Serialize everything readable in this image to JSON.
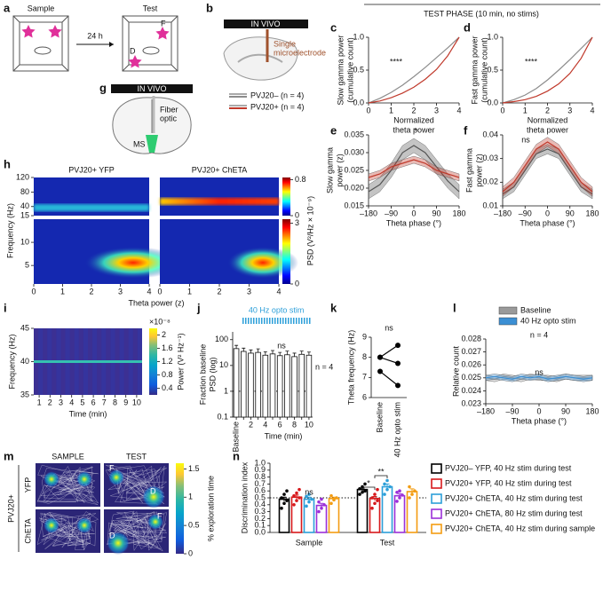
{
  "header": "TEST PHASE (10 min, no stims)",
  "panel_labels": [
    "a",
    "b",
    "c",
    "d",
    "e",
    "f",
    "g",
    "h",
    "i",
    "j",
    "k",
    "l",
    "m",
    "n"
  ],
  "diagrams": {
    "a": {
      "sample": "Sample",
      "test": "Test",
      "delay": "24 h",
      "objects": [
        "F",
        "D"
      ]
    },
    "b": {
      "banner": "IN VIVO",
      "electrode": [
        "Single",
        "microelectrode"
      ],
      "legend": [
        {
          "name": "PVJ20– (n = 4)",
          "color": "#8c8c8c"
        },
        {
          "name": "PVJ20+ (n = 4)",
          "color": "#c0392b"
        }
      ]
    },
    "g": {
      "banner": "IN VIVO",
      "fiber": [
        "Fiber",
        "optic"
      ],
      "region": "MS"
    }
  },
  "chart_data": [
    {
      "type": "line",
      "ylabel": [
        "Slow gamma power",
        "(cumulative count)"
      ],
      "xlabel": [
        "Normalized",
        "theta power"
      ],
      "annotation": "****",
      "x": [
        0,
        0.5,
        1,
        1.5,
        2,
        2.5,
        3,
        3.5,
        4
      ],
      "series": [
        {
          "color": "#8c8c8c",
          "values": [
            0,
            0.07,
            0.16,
            0.27,
            0.4,
            0.54,
            0.69,
            0.84,
            1
          ]
        },
        {
          "color": "#c0392b",
          "values": [
            0,
            0.03,
            0.08,
            0.15,
            0.24,
            0.36,
            0.51,
            0.72,
            1
          ]
        }
      ],
      "xlim": [
        0,
        4
      ],
      "xticks": [
        0,
        1,
        2,
        3,
        4
      ],
      "ylim": [
        0,
        1
      ],
      "yticks": [
        {
          "value": 0,
          "label": "0.0"
        },
        0.5,
        {
          "value": 1,
          "label": "1.0"
        }
      ]
    },
    {
      "type": "line",
      "ylabel": [
        "Fast gamma power",
        "(cumulative count)"
      ],
      "xlabel": [
        "Normalized",
        "theta power"
      ],
      "annotation": "****",
      "x": [
        0,
        0.5,
        1,
        1.5,
        2,
        2.5,
        3,
        3.5,
        4
      ],
      "series": [
        {
          "color": "#8c8c8c",
          "values": [
            0,
            0.05,
            0.12,
            0.22,
            0.35,
            0.5,
            0.66,
            0.83,
            1
          ]
        },
        {
          "color": "#c0392b",
          "values": [
            0,
            0.02,
            0.05,
            0.1,
            0.18,
            0.29,
            0.45,
            0.68,
            1
          ]
        }
      ],
      "xlim": [
        0,
        4
      ],
      "xticks": [
        0,
        1,
        2,
        3,
        4
      ],
      "ylim": [
        0,
        1
      ],
      "yticks": [
        {
          "value": 0,
          "label": "0.0"
        },
        0.5,
        {
          "value": 1,
          "label": "1.0"
        }
      ]
    },
    {
      "type": "line",
      "ylabel": [
        "Slow gamma",
        "power (z)"
      ],
      "xlabel": "Theta phase (°)",
      "annotation": "*",
      "x": [
        -180,
        -135,
        -90,
        -45,
        0,
        45,
        90,
        135,
        180
      ],
      "series": [
        {
          "color": "#555555",
          "values": [
            0.019,
            0.021,
            0.025,
            0.03,
            0.032,
            0.03,
            0.026,
            0.022,
            0.019
          ],
          "errors": [
            0.002,
            0.002,
            0.002,
            0.002,
            0.002,
            0.002,
            0.002,
            0.002,
            0.002
          ]
        },
        {
          "color": "#c0392b",
          "values": [
            0.023,
            0.024,
            0.026,
            0.027,
            0.028,
            0.027,
            0.025,
            0.024,
            0.023
          ],
          "errors": [
            0.001,
            0.001,
            0.001,
            0.001,
            0.001,
            0.001,
            0.001,
            0.001,
            0.001
          ]
        }
      ],
      "xlim": [
        -180,
        180
      ],
      "xticks": [
        {
          "value": -180,
          "label": "–180"
        },
        {
          "value": -90,
          "label": "–90"
        },
        0,
        90,
        180
      ],
      "ylim": [
        0.015,
        0.035
      ],
      "yticks": [
        0.015,
        {
          "value": 0.02,
          "label": "0.020"
        },
        0.025,
        {
          "value": 0.03,
          "label": "0.030"
        },
        0.035
      ]
    },
    {
      "type": "line",
      "ylabel": [
        "Fast gamma",
        "power (z)"
      ],
      "xlabel": "Theta phase (°)",
      "annotation": "ns",
      "x": [
        -180,
        -135,
        -90,
        -45,
        0,
        45,
        90,
        135,
        180
      ],
      "series": [
        {
          "color": "#555555",
          "values": [
            0.015,
            0.018,
            0.025,
            0.032,
            0.034,
            0.032,
            0.025,
            0.018,
            0.015
          ],
          "errors": [
            0.002,
            0.002,
            0.002,
            0.002,
            0.002,
            0.002,
            0.002,
            0.002,
            0.002
          ]
        },
        {
          "color": "#c0392b",
          "values": [
            0.016,
            0.02,
            0.027,
            0.034,
            0.037,
            0.034,
            0.027,
            0.02,
            0.016
          ],
          "errors": [
            0.002,
            0.002,
            0.002,
            0.002,
            0.002,
            0.002,
            0.002,
            0.002,
            0.002
          ]
        }
      ],
      "xlim": [
        -180,
        180
      ],
      "xticks": [
        {
          "value": -180,
          "label": "–180"
        },
        {
          "value": -90,
          "label": "–90"
        },
        0,
        90,
        180
      ],
      "ylim": [
        0.01,
        0.04
      ],
      "yticks": [
        0.01,
        0.02,
        0.03,
        0.04
      ]
    },
    {
      "type": "heatmap",
      "titles": [
        "PVJ20+ YFP",
        "PVJ20+ ChETA"
      ],
      "ylabel": "Frequency (Hz)",
      "xlabel": "Theta power (z)",
      "xlim": [
        0,
        4
      ],
      "xticks": [
        0,
        1,
        2,
        3,
        4
      ],
      "ylim": [
        15,
        120
      ],
      "yticks": [
        15,
        40,
        80,
        120
      ],
      "ylim_lower": [
        1,
        15
      ],
      "yticks_lower": [
        5,
        10
      ],
      "colorbar_label": "PSD (V²/Hz × 10⁻⁹)",
      "clim": [
        0,
        0.85
      ],
      "cticks": [
        0,
        0.8
      ],
      "clim_lower": [
        0,
        3.2
      ],
      "cticks_lower": [
        0,
        3
      ]
    },
    {
      "type": "heatmap",
      "ylabel": "Frequency (Hz)",
      "xlabel": "Time (min)",
      "xlim": [
        0.5,
        10.5
      ],
      "xticks": [
        1,
        2,
        3,
        4,
        5,
        6,
        7,
        8,
        9,
        10
      ],
      "ylim": [
        35,
        45
      ],
      "yticks": [
        35,
        40,
        45
      ],
      "colorbar_label": "Power (V² Hz⁻¹)",
      "colorbar_scale": "×10⁻⁸",
      "clim": [
        0.2,
        2.2
      ],
      "cticks": [
        0.4,
        0.8,
        1.2,
        1.6,
        2
      ]
    },
    {
      "type": "bar",
      "ylabel": [
        "Fraction baseline",
        "PSD (log)"
      ],
      "xlabel": "Time (min)",
      "stim_label": "40 Hz opto stim",
      "annotation": "ns",
      "n_label": "n = 4",
      "categories": [
        "Baseline",
        null,
        "2",
        null,
        "4",
        null,
        "6",
        null,
        "8",
        null,
        "10"
      ],
      "values": [
        45,
        35,
        30,
        32,
        25,
        28,
        24,
        26,
        22,
        27,
        25
      ],
      "errors": [
        15,
        12,
        10,
        12,
        9,
        10,
        8,
        10,
        8,
        9,
        8
      ],
      "log_scale": true,
      "ylim": [
        0.1,
        200
      ],
      "yticks": [
        0.1,
        1,
        10,
        100
      ],
      "reference": 1
    },
    {
      "type": "line",
      "ylabel": "Theta frequency (Hz)",
      "annotation": "ns",
      "categories": [
        "Baseline",
        "40 Hz opto stim"
      ],
      "series": [
        {
          "color": "#000000",
          "values": [
            8,
            8.6
          ]
        },
        {
          "color": "#000000",
          "values": [
            8,
            7.7
          ]
        },
        {
          "color": "#000000",
          "values": [
            7.3,
            6.6
          ]
        }
      ],
      "ylim": [
        6,
        9
      ],
      "yticks": [
        6,
        7,
        8,
        9
      ]
    },
    {
      "type": "line",
      "ylabel": "Relative count",
      "xlabel": "Theta phase (°)",
      "annotation": "ns",
      "n_label": "n = 4",
      "x": [
        -180,
        -150,
        -120,
        -90,
        -60,
        -30,
        0,
        30,
        60,
        90,
        120,
        150,
        180
      ],
      "series": [
        {
          "name": "Baseline",
          "color": "#9a9a9a",
          "values": [
            0.025,
            0.0249,
            0.0251,
            0.025,
            0.0249,
            0.0251,
            0.025,
            0.025,
            0.0249,
            0.0251,
            0.025,
            0.025,
            0.025
          ],
          "errors": [
            0.0002,
            0.0002,
            0.0002,
            0.0002,
            0.0002,
            0.0002,
            0.0002,
            0.0002,
            0.0002,
            0.0002,
            0.0002,
            0.0002,
            0.0002
          ]
        },
        {
          "name": "40 Hz opto stim",
          "color": "#3b8fd4",
          "values": [
            0.025,
            0.0251,
            0.025,
            0.0249,
            0.0251,
            0.025,
            0.0251,
            0.0249,
            0.025,
            0.0251,
            0.025,
            0.0249,
            0.025
          ],
          "errors": [
            0.0002,
            0.0002,
            0.0002,
            0.0002,
            0.0002,
            0.0002,
            0.0002,
            0.0002,
            0.0002,
            0.0002,
            0.0002,
            0.0002,
            0.0002
          ]
        }
      ],
      "xlim": [
        -180,
        180
      ],
      "xticks": [
        {
          "value": -180,
          "label": "–180"
        },
        {
          "value": -90,
          "label": "–90"
        },
        0,
        90,
        180
      ],
      "ylim": [
        0.023,
        0.028
      ],
      "yticks": [
        0.023,
        0.024,
        0.025,
        0.026,
        0.027,
        0.028
      ]
    },
    {
      "type": "heatmap",
      "columns": [
        "SAMPLE",
        "TEST"
      ],
      "rows": [
        "YFP",
        "ChETA"
      ],
      "group": "PVJ20+",
      "labels": [
        [
          "F",
          "D"
        ],
        [
          "F",
          "D"
        ]
      ],
      "colorbar_label": "% exploration time",
      "clim": [
        0,
        1.6
      ],
      "cticks": [
        0,
        0.5,
        1,
        1.5
      ]
    },
    {
      "type": "bar",
      "ylabel": "Discrimination index",
      "categories": [
        "Sample",
        "Test"
      ],
      "annotations": [
        "ns",
        "*",
        "**"
      ],
      "reference": 0.5,
      "series": [
        {
          "name": "PVJ20– YFP, 40 Hz stim during test",
          "color": "#000000",
          "values": [
            0.48,
            0.62
          ],
          "errors": [
            0.03,
            0.02
          ],
          "points": [
            [
              0.35,
              0.42,
              0.46,
              0.5,
              0.55,
              0.6
            ],
            [
              0.55,
              0.58,
              0.6,
              0.63,
              0.66,
              0.7
            ]
          ]
        },
        {
          "name": "PVJ20+ YFP, 40 Hz stim during test",
          "color": "#d7191c",
          "values": [
            0.51,
            0.49
          ],
          "errors": [
            0.03,
            0.03
          ],
          "points": [
            [
              0.4,
              0.46,
              0.5,
              0.53,
              0.57,
              0.62
            ],
            [
              0.35,
              0.42,
              0.46,
              0.5,
              0.55,
              0.62
            ]
          ]
        },
        {
          "name": "PVJ20+ ChETA, 40 Hz stim during test",
          "color": "#2c9fd9",
          "values": [
            0.48,
            0.66
          ],
          "errors": [
            0.03,
            0.04
          ],
          "points": [
            [
              0.38,
              0.44,
              0.48,
              0.52,
              0.55
            ],
            [
              0.55,
              0.62,
              0.66,
              0.7,
              0.75
            ]
          ]
        },
        {
          "name": "PVJ20+ ChETA, 80 Hz stim during test",
          "color": "#9b30d9",
          "values": [
            0.39,
            0.53
          ],
          "errors": [
            0.03,
            0.03
          ],
          "points": [
            [
              0.3,
              0.35,
              0.4,
              0.44,
              0.48
            ],
            [
              0.45,
              0.5,
              0.54,
              0.58,
              0.6
            ]
          ]
        },
        {
          "name": "PVJ20+ ChETA, 40 Hz stim during sample",
          "color": "#f39c12",
          "values": [
            0.49,
            0.59
          ],
          "errors": [
            0.02,
            0.04
          ],
          "points": [
            [
              0.42,
              0.47,
              0.5,
              0.53
            ],
            [
              0.5,
              0.55,
              0.6,
              0.66
            ]
          ]
        }
      ],
      "ylim": [
        0,
        1
      ],
      "yticks": [
        {
          "value": 0,
          "label": "0.0"
        },
        0.1,
        0.2,
        0.3,
        0.4,
        0.5,
        0.6,
        0.7,
        0.8,
        0.9,
        {
          "value": 1,
          "label": "1.0"
        }
      ]
    }
  ]
}
